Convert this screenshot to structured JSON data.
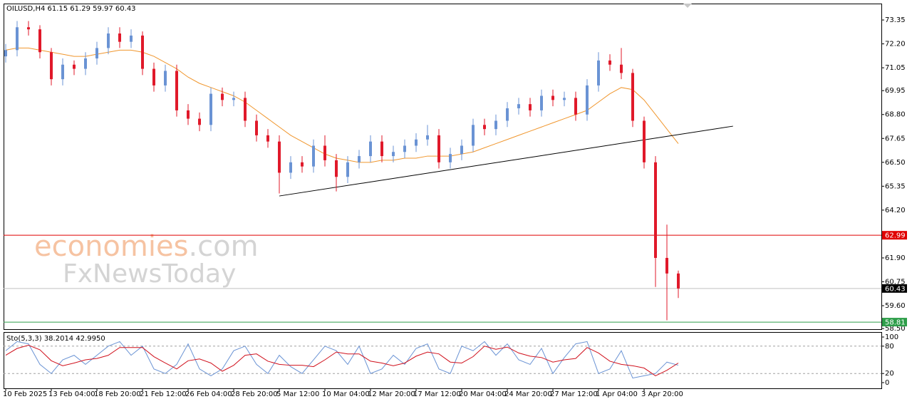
{
  "chart_data": [
    {
      "type": "candlestick",
      "title": "OILUSD,H4  61.15 61.29 59.97 60.43",
      "watermark_brand": "economies",
      "watermark_domain": ".com",
      "watermark_2": "FxNewsToday",
      "categories": [
        "10 Feb 2025",
        null,
        null,
        null,
        "13 Feb 04:00",
        null,
        null,
        null,
        "18 Feb 20:00",
        null,
        null,
        null,
        "21 Feb 12:00",
        null,
        null,
        null,
        "26 Feb 04:00",
        null,
        null,
        null,
        "28 Feb 20:00",
        null,
        null,
        null,
        "5 Mar 12:00",
        null,
        null,
        null,
        "10 Mar 04:00",
        null,
        null,
        null,
        "12 Mar 20:00",
        null,
        null,
        null,
        "17 Mar 12:00",
        null,
        null,
        null,
        "20 Mar 04:00",
        null,
        null,
        null,
        "24 Mar 20:00",
        null,
        null,
        null,
        "27 Mar 12:00",
        null,
        null,
        null,
        "1 Apr 04:00",
        null,
        null,
        null,
        "3 Apr 20:00",
        null,
        null,
        null
      ],
      "open": [
        71.6,
        71.9,
        73.0,
        72.9,
        71.8,
        70.5,
        71.2,
        71.0,
        71.5,
        72.0,
        72.7,
        72.3,
        72.6,
        71.0,
        70.2,
        70.9,
        69.0,
        68.6,
        68.3,
        69.8,
        69.5,
        69.6,
        68.5,
        67.8,
        67.5,
        66.0,
        66.5,
        66.3,
        67.3,
        66.6,
        65.8,
        66.5,
        66.8,
        67.5,
        66.8,
        67.0,
        67.3,
        67.6,
        67.8,
        66.5,
        66.9,
        67.3,
        68.3,
        68.1,
        68.5,
        69.1,
        69.3,
        69.0,
        69.7,
        69.5,
        69.6,
        68.8,
        70.2,
        71.4,
        71.2,
        70.8,
        68.5,
        66.5,
        61.9,
        61.15
      ],
      "high": [
        72.2,
        73.3,
        73.3,
        73.1,
        72.0,
        71.5,
        71.4,
        71.8,
        72.3,
        73.0,
        73.0,
        72.9,
        72.8,
        71.3,
        71.2,
        71.2,
        69.3,
        68.9,
        70.1,
        70.1,
        69.9,
        69.9,
        68.8,
        68.1,
        67.8,
        66.8,
        66.8,
        67.6,
        67.8,
        66.9,
        66.8,
        67.1,
        67.8,
        67.8,
        67.3,
        67.6,
        67.9,
        68.3,
        68.1,
        67.2,
        67.6,
        68.6,
        68.6,
        68.8,
        69.4,
        69.6,
        69.6,
        70.0,
        70.0,
        69.9,
        69.9,
        70.5,
        71.8,
        71.7,
        72.0,
        71.0,
        68.7,
        66.8,
        63.5,
        61.29
      ],
      "low": [
        71.3,
        71.6,
        72.6,
        71.5,
        70.2,
        70.2,
        70.7,
        70.7,
        71.2,
        71.7,
        72.0,
        72.0,
        70.7,
        69.9,
        69.9,
        68.7,
        68.3,
        68.0,
        68.0,
        69.2,
        69.2,
        68.2,
        67.5,
        67.2,
        65.0,
        65.7,
        66.0,
        66.0,
        66.3,
        65.1,
        65.5,
        66.2,
        66.5,
        66.5,
        66.5,
        66.7,
        67.0,
        67.3,
        66.2,
        66.2,
        66.6,
        67.0,
        67.8,
        67.8,
        68.2,
        68.8,
        68.7,
        68.7,
        69.2,
        69.2,
        68.5,
        68.5,
        69.9,
        70.9,
        70.5,
        68.2,
        66.2,
        60.5,
        58.9,
        59.97
      ],
      "close": [
        71.9,
        73.0,
        72.9,
        71.8,
        70.5,
        71.2,
        71.0,
        71.5,
        72.0,
        72.7,
        72.3,
        72.6,
        71.0,
        70.2,
        70.9,
        69.0,
        68.6,
        68.3,
        69.8,
        69.5,
        69.6,
        68.5,
        67.8,
        67.5,
        66.0,
        66.5,
        66.3,
        67.3,
        66.6,
        65.8,
        66.5,
        66.8,
        67.5,
        66.8,
        67.0,
        67.3,
        67.6,
        67.8,
        66.5,
        66.9,
        67.3,
        68.3,
        68.1,
        68.5,
        69.1,
        69.3,
        69.0,
        69.7,
        69.5,
        69.6,
        68.8,
        70.2,
        71.4,
        71.2,
        70.8,
        68.5,
        66.5,
        61.9,
        61.15,
        60.43
      ],
      "up_color": "#6a93d4",
      "down_color": "#e0192a",
      "moving_average": {
        "color": "#f0962d",
        "values": [
          71.9,
          72.0,
          72.0,
          71.9,
          71.8,
          71.7,
          71.6,
          71.6,
          71.7,
          71.8,
          71.9,
          71.9,
          71.8,
          71.6,
          71.3,
          71.0,
          70.6,
          70.3,
          70.1,
          69.9,
          69.7,
          69.4,
          69.0,
          68.6,
          68.2,
          67.8,
          67.5,
          67.2,
          66.9,
          66.7,
          66.6,
          66.5,
          66.5,
          66.6,
          66.6,
          66.7,
          66.7,
          66.8,
          66.8,
          66.8,
          66.9,
          67.0,
          67.2,
          67.4,
          67.6,
          67.8,
          68.0,
          68.2,
          68.4,
          68.6,
          68.8,
          69.0,
          69.4,
          69.8,
          70.1,
          70.0,
          69.5,
          68.8,
          68.1,
          67.4
        ]
      },
      "trendline": {
        "color": "#000000",
        "x": [
          24,
          63.8
        ],
        "y": [
          64.88,
          68.24
        ]
      },
      "levels": [
        {
          "value": 62.99,
          "color": "#e00000"
        },
        {
          "value": 60.43,
          "color": "#000000",
          "line_color": "#c0c0c0"
        },
        {
          "value": 58.81,
          "color": "#2e9e4a"
        }
      ],
      "ylim": [
        58.47,
        74.14
      ],
      "yticks": [
        73.35,
        {
          "value": 72.2,
          "label": "72.20"
        },
        71.05,
        69.95,
        {
          "value": 68.8,
          "label": "68.80"
        },
        67.65,
        {
          "value": 66.5,
          "label": "66.50"
        },
        65.35,
        {
          "value": 64.2,
          "label": "64.20"
        },
        {
          "value": 61.9,
          "label": "61.90"
        },
        60.75,
        {
          "value": 59.6,
          "label": "59.60"
        },
        {
          "value": 58.5,
          "label": "58.50"
        }
      ]
    },
    {
      "type": "line",
      "title": "Sto(5,3,3) 38.2014 42.9950",
      "series": [
        {
          "color": "#6a93d4",
          "values": [
            70,
            90,
            85,
            40,
            20,
            50,
            60,
            40,
            60,
            80,
            90,
            60,
            80,
            30,
            20,
            40,
            85,
            30,
            15,
            30,
            70,
            80,
            40,
            20,
            60,
            35,
            20,
            50,
            80,
            70,
            40,
            80,
            20,
            30,
            60,
            40,
            75,
            85,
            30,
            20,
            80,
            70,
            90,
            60,
            85,
            50,
            40,
            75,
            20,
            55,
            85,
            90,
            20,
            30,
            70,
            10,
            15,
            20,
            45,
            38.2014
          ]
        },
        {
          "color": "#d0101c",
          "values": [
            60,
            75,
            82,
            72,
            48,
            37,
            43,
            50,
            53,
            60,
            77,
            77,
            77,
            57,
            43,
            30,
            48,
            52,
            43,
            25,
            38,
            60,
            63,
            47,
            40,
            38,
            38,
            35,
            50,
            67,
            63,
            63,
            47,
            43,
            37,
            43,
            58,
            67,
            63,
            45,
            43,
            57,
            80,
            73,
            78,
            65,
            58,
            55,
            45,
            50,
            53,
            77,
            65,
            47,
            40,
            37,
            32,
            15,
            27,
            42.995
          ]
        }
      ],
      "ylim": [
        -12.5,
        109.4
      ],
      "yticks": [
        0,
        20,
        80,
        100
      ],
      "dashed_levels": [
        20,
        80
      ]
    }
  ]
}
